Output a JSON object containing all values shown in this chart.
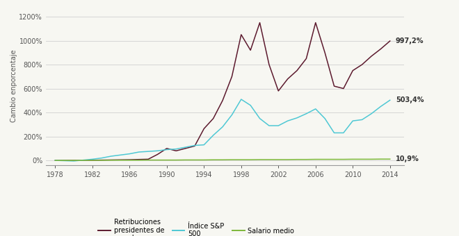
{
  "ylabel": "Cambio enporcentaje",
  "background_color": "#f7f7f2",
  "grid_color": "#d0d0d0",
  "years": [
    1978,
    1980,
    1982,
    1983,
    1984,
    1985,
    1986,
    1987,
    1988,
    1989,
    1990,
    1991,
    1992,
    1993,
    1994,
    1995,
    1996,
    1997,
    1998,
    1999,
    2000,
    2001,
    2002,
    2003,
    2004,
    2005,
    2006,
    2007,
    2008,
    2009,
    2010,
    2011,
    2012,
    2013,
    2014
  ],
  "ceo_pay": [
    0,
    0,
    2,
    3,
    4,
    5,
    6,
    8,
    10,
    50,
    100,
    80,
    100,
    120,
    265,
    350,
    500,
    700,
    1050,
    920,
    1150,
    800,
    580,
    680,
    750,
    850,
    1150,
    900,
    620,
    600,
    750,
    800,
    870,
    930,
    997
  ],
  "sp500": [
    0,
    -5,
    10,
    20,
    35,
    45,
    55,
    70,
    75,
    80,
    90,
    95,
    110,
    125,
    130,
    210,
    280,
    380,
    510,
    460,
    350,
    290,
    290,
    330,
    355,
    390,
    430,
    350,
    230,
    230,
    330,
    340,
    390,
    450,
    503
  ],
  "salary": [
    0,
    0,
    1,
    1,
    2,
    2,
    2,
    2,
    3,
    3,
    3,
    3,
    4,
    4,
    4,
    5,
    5,
    6,
    6,
    6,
    7,
    7,
    7,
    7,
    8,
    8,
    9,
    9,
    9,
    9,
    10,
    10,
    10,
    11,
    11
  ],
  "ceo_color": "#5c1a2e",
  "sp500_color": "#4ec8d4",
  "salary_color": "#7db83a",
  "annotation_997": "997,2%",
  "annotation_503": "503,4%",
  "annotation_10": "10,9%",
  "legend_ceo": "Retribuciones\npresidentes de\ngrandes em-",
  "legend_sp500": "Índice S&P\n500",
  "legend_salary": "Salario medio",
  "xticks": [
    1978,
    1982,
    1986,
    1990,
    1994,
    1998,
    2002,
    2006,
    2010,
    2014
  ],
  "yticks": [
    0,
    200,
    400,
    600,
    800,
    1000,
    1200
  ],
  "ylim": [
    -40,
    1280
  ],
  "xlim": [
    1977,
    2015.5
  ]
}
